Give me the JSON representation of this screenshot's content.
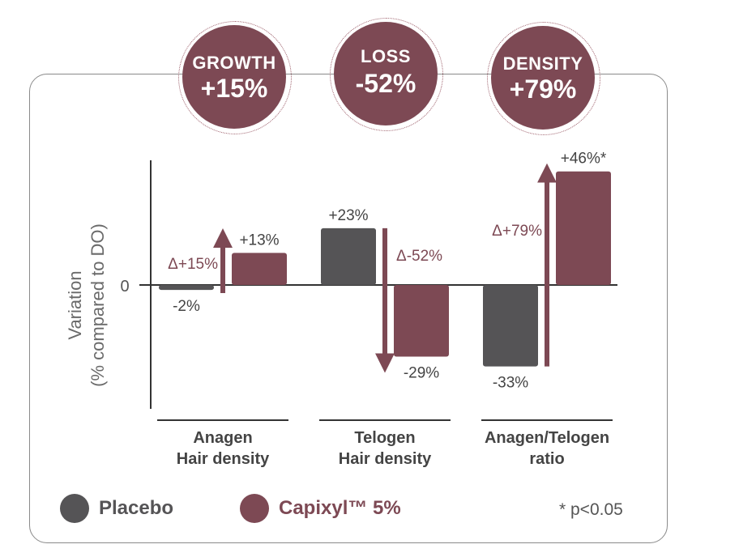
{
  "badges": [
    {
      "label": "GROWTH",
      "value": "+15%"
    },
    {
      "label": "LOSS",
      "value": "-52%"
    },
    {
      "label": "DENSITY",
      "value": "+79%"
    }
  ],
  "chart_data": {
    "type": "bar",
    "ylabel_line1": "Variation",
    "ylabel_line2": "(% compared to DO)",
    "zero_label": "0",
    "categories": [
      {
        "line1": "Anagen",
        "line2": "Hair density"
      },
      {
        "line1": "Telogen",
        "line2": "Hair density"
      },
      {
        "line1": "Anagen/Telogen",
        "line2": "ratio"
      }
    ],
    "series": [
      {
        "name": "Placebo",
        "color": "#555456",
        "values": [
          -2,
          23,
          -33
        ],
        "labels": [
          "-2%",
          "+23%",
          "-33%"
        ]
      },
      {
        "name": "Capixyl™ 5%",
        "color": "#7d4954",
        "values": [
          13,
          -29,
          46
        ],
        "labels": [
          "+13%",
          "-29%",
          "+46%*"
        ]
      }
    ],
    "deltas": [
      {
        "label": "Δ+15%",
        "direction": "up"
      },
      {
        "label": "Δ-52%",
        "direction": "down"
      },
      {
        "label": "Δ+79%",
        "direction": "up"
      }
    ],
    "footnote": "* p<0.05"
  },
  "legend": [
    {
      "label": "Placebo",
      "color": "#555456",
      "text_color": "#555456"
    },
    {
      "label": "Capixyl™ 5%",
      "color": "#7d4954",
      "text_color": "#7d4954"
    }
  ]
}
